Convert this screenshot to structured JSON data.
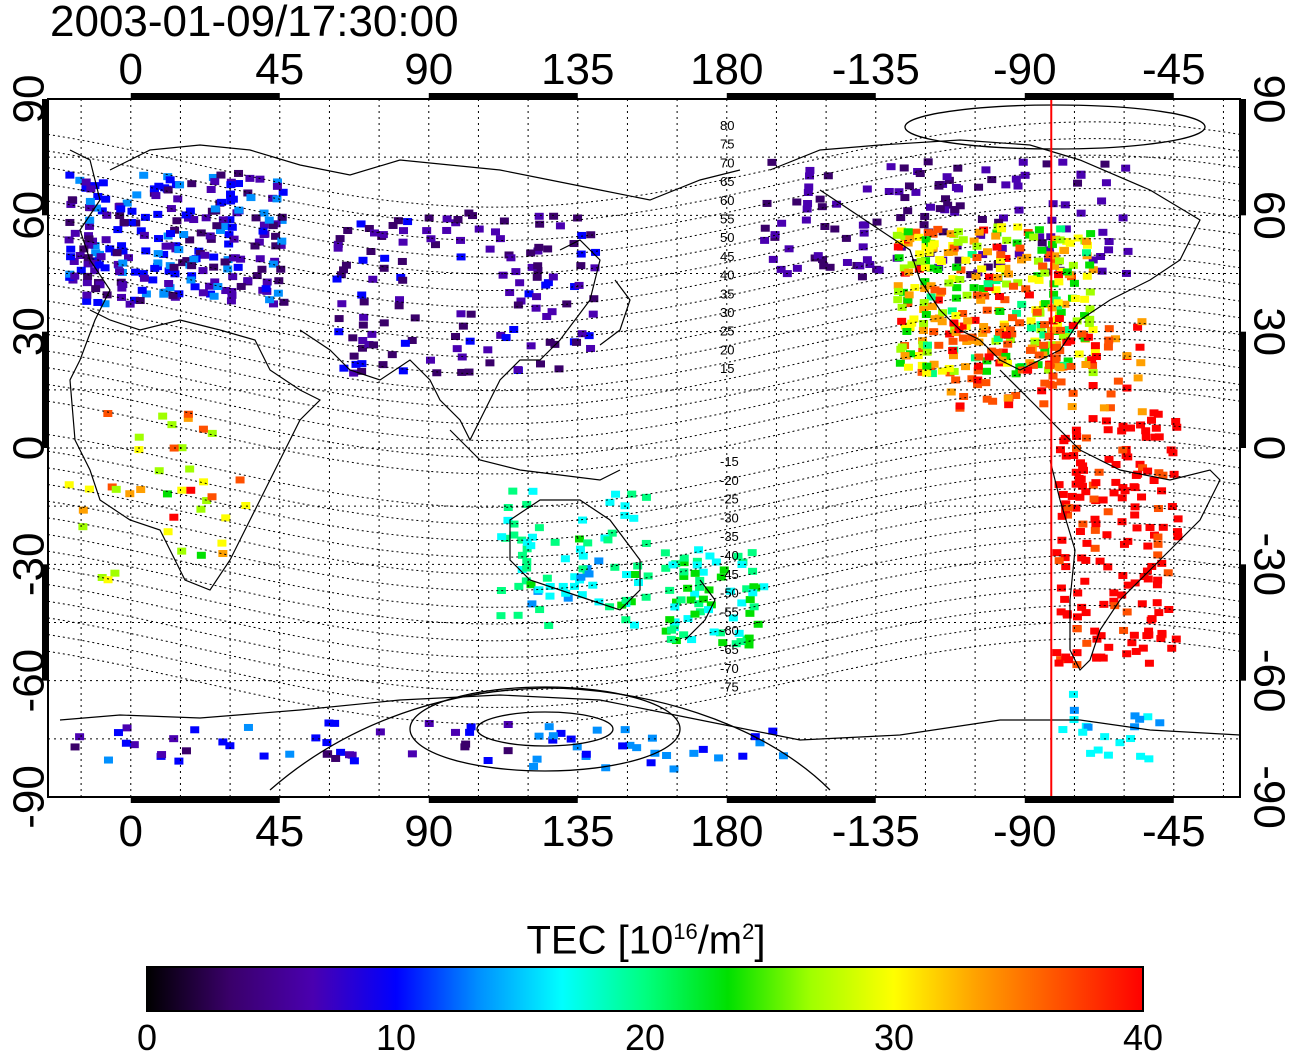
{
  "title": "2003-01-09/17:30:00",
  "map": {
    "lon_ticks_top": [
      "0",
      "45",
      "90",
      "135",
      "180",
      "-135",
      "-90",
      "-45"
    ],
    "lon_ticks_bottom": [
      "0",
      "45",
      "90",
      "135",
      "180",
      "-135",
      "-90",
      "-45"
    ],
    "lat_ticks_left": [
      "90",
      "60",
      "30",
      "0",
      "-30",
      "-60",
      "-90"
    ],
    "lat_ticks_right": [
      "90",
      "60",
      "30",
      "0",
      "-30",
      "-60",
      "-90"
    ],
    "lon_range": [
      -25,
      335
    ],
    "lat_range": [
      -90,
      90
    ],
    "meridian_line_lon": -82,
    "meridian_line_color": "#ff0000",
    "contour_labels_north": [
      "80",
      "75",
      "70",
      "65",
      "60",
      "55",
      "50",
      "45",
      "40",
      "35",
      "30",
      "25",
      "20",
      "15"
    ],
    "contour_labels_south": [
      "-15",
      "-20",
      "-25",
      "-30",
      "-35",
      "-40",
      "-45",
      "-50",
      "-55",
      "-60",
      "-65",
      "-70",
      "-75"
    ]
  },
  "colorbar": {
    "title_text": "TEC  [10",
    "title_exp1": "16",
    "title_mid": "/m",
    "title_exp2": "2",
    "title_end": "]",
    "ticks": [
      "0",
      "10",
      "20",
      "30",
      "40"
    ],
    "range": [
      0,
      40
    ],
    "colors": [
      "#000000",
      "#3a006a",
      "#4a00b0",
      "#0000ff",
      "#0090ff",
      "#00ffff",
      "#00ff80",
      "#00e000",
      "#a0ff00",
      "#ffff00",
      "#ffa000",
      "#ff5000",
      "#ff0000"
    ]
  }
}
